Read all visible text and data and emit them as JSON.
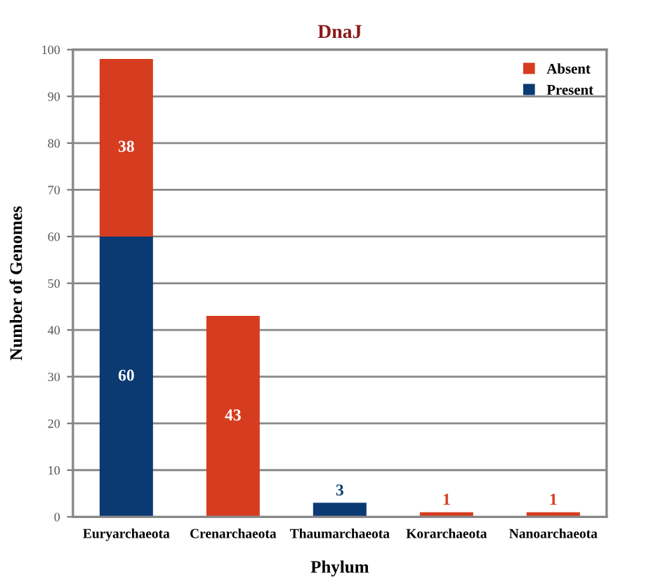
{
  "chart_data": {
    "type": "bar",
    "title": "DnaJ",
    "xlabel": "Phylum",
    "ylabel": "Number of Genomes",
    "categories": [
      "Euryarchaeota",
      "Crenarchaeota",
      "Thaumarchaeota",
      "Korarchaeota",
      "Nanoarchaeota"
    ],
    "series": [
      {
        "name": "Present",
        "color": "#0b3a73",
        "values": [
          60,
          0,
          3,
          0,
          0
        ],
        "value_labels": [
          "60",
          null,
          "3",
          null,
          null
        ]
      },
      {
        "name": "Absent",
        "color": "#d63c1f",
        "values": [
          38,
          43,
          0,
          1,
          1
        ],
        "value_labels": [
          "38",
          "43",
          null,
          "1",
          "1"
        ]
      }
    ],
    "stacked": true,
    "ylim": [
      0,
      100
    ],
    "yticks": [
      0,
      10,
      20,
      30,
      40,
      50,
      60,
      70,
      80,
      90,
      100
    ],
    "grid": "y",
    "legend": "top right"
  }
}
